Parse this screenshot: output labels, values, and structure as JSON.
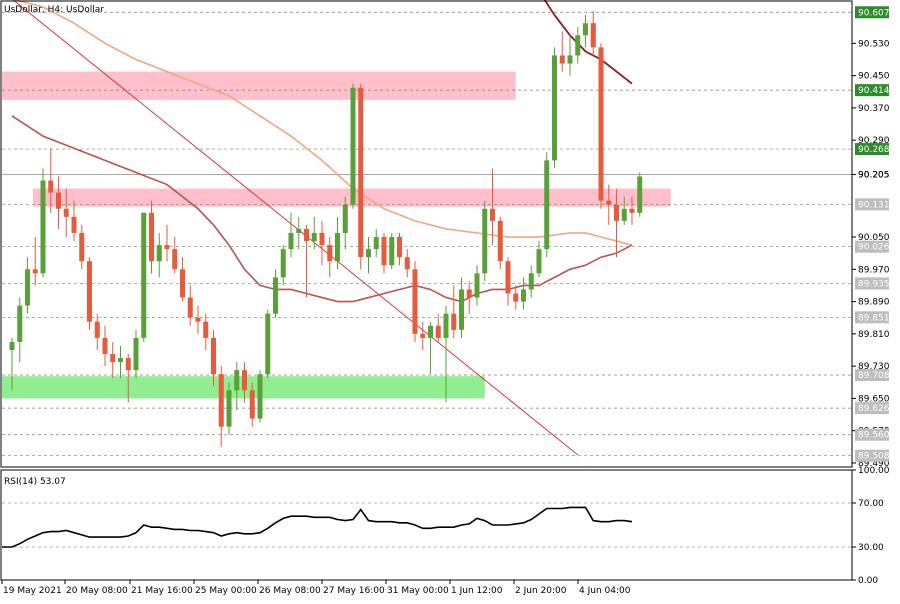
{
  "chart_data": {
    "type": "candlestick",
    "title": "UsDollar, H4:  UsDollar",
    "symbol": "UsDollar",
    "timeframe": "H4",
    "y_ticks": [
      "90.530",
      "90.450",
      "90.370",
      "90.290",
      "90.205",
      "90.050",
      "89.970",
      "89.890",
      "89.810",
      "89.730",
      "89.650",
      "89.570",
      "89.490"
    ],
    "price_labels": [
      {
        "text": "90.607",
        "value": 90.607,
        "color": "#2b8c2b"
      },
      {
        "text": "90.414",
        "value": 90.414,
        "color": "#2b8c2b"
      },
      {
        "text": "90.268",
        "value": 90.268,
        "color": "#2b8c2b"
      },
      {
        "text": "90.205",
        "value": 90.205,
        "color": "#ffffff"
      },
      {
        "text": "90.131",
        "value": 90.131,
        "color": "#bdbdbd"
      },
      {
        "text": "90.026",
        "value": 90.026,
        "color": "#bdbdbd"
      },
      {
        "text": "89.935",
        "value": 89.935,
        "color": "#bdbdbd"
      },
      {
        "text": "89.851",
        "value": 89.851,
        "color": "#bdbdbd"
      },
      {
        "text": "89.708",
        "value": 89.708,
        "color": "#bdbdbd"
      },
      {
        "text": "89.626",
        "value": 89.626,
        "color": "#bdbdbd"
      },
      {
        "text": "89.560",
        "value": 89.56,
        "color": "#bdbdbd"
      },
      {
        "text": "89.508",
        "value": 89.508,
        "color": "#bdbdbd"
      }
    ],
    "x_labels": [
      "19 May 2021",
      "20 May 08:00",
      "21 May 16:00",
      "25 May 00:00",
      "26 May 08:00",
      "27 May 16:00",
      "31 May 00:00",
      "1 Jun 12:00",
      "2 Jun 20:00",
      "4 Jun 04:00"
    ],
    "zones": [
      {
        "type": "resistance",
        "from": 90.39,
        "to": 90.46,
        "bar_start": 0,
        "bar_end": 65,
        "color": "#ffc0cb"
      },
      {
        "type": "resistance",
        "from": 90.125,
        "to": 90.17,
        "bar_start": 4,
        "bar_end": 85,
        "color": "#ffc0cb"
      },
      {
        "type": "support",
        "from": 89.65,
        "to": 89.705,
        "bar_start": 0,
        "bar_end": 61,
        "color": "#90ee90"
      }
    ],
    "candles": [
      {
        "o": 89.77,
        "h": 89.8,
        "l": 89.67,
        "c": 89.79
      },
      {
        "o": 89.79,
        "h": 89.9,
        "l": 89.74,
        "c": 89.88
      },
      {
        "o": 89.88,
        "h": 90.0,
        "l": 89.86,
        "c": 89.97
      },
      {
        "o": 89.97,
        "h": 90.05,
        "l": 89.93,
        "c": 89.96
      },
      {
        "o": 89.96,
        "h": 90.22,
        "l": 89.95,
        "c": 90.19
      },
      {
        "o": 90.19,
        "h": 90.27,
        "l": 90.11,
        "c": 90.16
      },
      {
        "o": 90.16,
        "h": 90.2,
        "l": 90.07,
        "c": 90.12
      },
      {
        "o": 90.12,
        "h": 90.17,
        "l": 90.05,
        "c": 90.1
      },
      {
        "o": 90.1,
        "h": 90.14,
        "l": 90.04,
        "c": 90.06
      },
      {
        "o": 90.06,
        "h": 90.08,
        "l": 89.97,
        "c": 89.99
      },
      {
        "o": 89.99,
        "h": 90.0,
        "l": 89.82,
        "c": 89.84
      },
      {
        "o": 89.84,
        "h": 89.86,
        "l": 89.77,
        "c": 89.8
      },
      {
        "o": 89.8,
        "h": 89.83,
        "l": 89.73,
        "c": 89.76
      },
      {
        "o": 89.76,
        "h": 89.79,
        "l": 89.7,
        "c": 89.74
      },
      {
        "o": 89.74,
        "h": 89.78,
        "l": 89.7,
        "c": 89.75
      },
      {
        "o": 89.75,
        "h": 89.76,
        "l": 89.64,
        "c": 89.72
      },
      {
        "o": 89.72,
        "h": 89.82,
        "l": 89.7,
        "c": 89.8
      },
      {
        "o": 89.8,
        "h": 90.11,
        "l": 89.79,
        "c": 90.11
      },
      {
        "o": 90.11,
        "h": 90.14,
        "l": 89.96,
        "c": 89.99
      },
      {
        "o": 89.99,
        "h": 90.06,
        "l": 89.95,
        "c": 90.03
      },
      {
        "o": 90.03,
        "h": 90.08,
        "l": 89.99,
        "c": 90.02
      },
      {
        "o": 90.02,
        "h": 90.05,
        "l": 89.96,
        "c": 89.97
      },
      {
        "o": 89.97,
        "h": 90.0,
        "l": 89.89,
        "c": 89.9
      },
      {
        "o": 89.9,
        "h": 89.93,
        "l": 89.83,
        "c": 89.85
      },
      {
        "o": 89.85,
        "h": 89.88,
        "l": 89.81,
        "c": 89.84
      },
      {
        "o": 89.84,
        "h": 89.86,
        "l": 89.77,
        "c": 89.8
      },
      {
        "o": 89.8,
        "h": 89.82,
        "l": 89.68,
        "c": 89.71
      },
      {
        "o": 89.71,
        "h": 89.73,
        "l": 89.53,
        "c": 89.58
      },
      {
        "o": 89.58,
        "h": 89.69,
        "l": 89.56,
        "c": 89.67
      },
      {
        "o": 89.67,
        "h": 89.74,
        "l": 89.62,
        "c": 89.72
      },
      {
        "o": 89.72,
        "h": 89.74,
        "l": 89.64,
        "c": 89.67
      },
      {
        "o": 89.67,
        "h": 89.69,
        "l": 89.58,
        "c": 89.6
      },
      {
        "o": 89.6,
        "h": 89.72,
        "l": 89.59,
        "c": 89.71
      },
      {
        "o": 89.71,
        "h": 89.87,
        "l": 89.7,
        "c": 89.86
      },
      {
        "o": 89.86,
        "h": 89.97,
        "l": 89.85,
        "c": 89.95
      },
      {
        "o": 89.95,
        "h": 90.03,
        "l": 89.93,
        "c": 90.02
      },
      {
        "o": 90.02,
        "h": 90.11,
        "l": 90.0,
        "c": 90.06
      },
      {
        "o": 90.06,
        "h": 90.1,
        "l": 90.02,
        "c": 90.07
      },
      {
        "o": 90.07,
        "h": 90.08,
        "l": 89.9,
        "c": 90.04
      },
      {
        "o": 90.04,
        "h": 90.1,
        "l": 90.02,
        "c": 90.06
      },
      {
        "o": 90.06,
        "h": 90.09,
        "l": 89.98,
        "c": 90.03
      },
      {
        "o": 90.03,
        "h": 90.05,
        "l": 89.95,
        "c": 89.99
      },
      {
        "o": 89.99,
        "h": 90.1,
        "l": 89.97,
        "c": 90.06
      },
      {
        "o": 90.06,
        "h": 90.15,
        "l": 90.02,
        "c": 90.13
      },
      {
        "o": 90.13,
        "h": 90.43,
        "l": 90.12,
        "c": 90.42
      },
      {
        "o": 90.42,
        "h": 90.43,
        "l": 89.97,
        "c": 90.0
      },
      {
        "o": 90.0,
        "h": 90.05,
        "l": 89.96,
        "c": 90.02
      },
      {
        "o": 90.02,
        "h": 90.07,
        "l": 90.0,
        "c": 90.05
      },
      {
        "o": 90.05,
        "h": 90.06,
        "l": 89.96,
        "c": 89.98
      },
      {
        "o": 89.98,
        "h": 90.06,
        "l": 89.97,
        "c": 90.05
      },
      {
        "o": 90.05,
        "h": 90.06,
        "l": 89.98,
        "c": 90.0
      },
      {
        "o": 90.0,
        "h": 90.02,
        "l": 89.95,
        "c": 89.97
      },
      {
        "o": 89.97,
        "h": 89.99,
        "l": 89.79,
        "c": 89.81
      },
      {
        "o": 89.81,
        "h": 89.84,
        "l": 89.77,
        "c": 89.8
      },
      {
        "o": 89.8,
        "h": 89.84,
        "l": 89.71,
        "c": 89.83
      },
      {
        "o": 89.83,
        "h": 89.86,
        "l": 89.79,
        "c": 89.8
      },
      {
        "o": 89.8,
        "h": 89.88,
        "l": 89.64,
        "c": 89.86
      },
      {
        "o": 89.86,
        "h": 89.93,
        "l": 89.8,
        "c": 89.82
      },
      {
        "o": 89.82,
        "h": 89.95,
        "l": 89.8,
        "c": 89.92
      },
      {
        "o": 89.92,
        "h": 89.94,
        "l": 89.86,
        "c": 89.9
      },
      {
        "o": 89.9,
        "h": 89.98,
        "l": 89.88,
        "c": 89.96
      },
      {
        "o": 89.96,
        "h": 90.14,
        "l": 89.94,
        "c": 90.12
      },
      {
        "o": 90.12,
        "h": 90.22,
        "l": 90.03,
        "c": 90.09
      },
      {
        "o": 90.09,
        "h": 90.1,
        "l": 89.97,
        "c": 89.99
      },
      {
        "o": 89.99,
        "h": 90.0,
        "l": 89.88,
        "c": 89.91
      },
      {
        "o": 89.91,
        "h": 89.93,
        "l": 89.87,
        "c": 89.89
      },
      {
        "o": 89.89,
        "h": 89.95,
        "l": 89.87,
        "c": 89.92
      },
      {
        "o": 89.92,
        "h": 89.98,
        "l": 89.9,
        "c": 89.96
      },
      {
        "o": 89.96,
        "h": 90.04,
        "l": 89.95,
        "c": 90.02
      },
      {
        "o": 90.02,
        "h": 90.26,
        "l": 90.0,
        "c": 90.24
      },
      {
        "o": 90.24,
        "h": 90.52,
        "l": 90.22,
        "c": 90.5
      },
      {
        "o": 90.5,
        "h": 90.56,
        "l": 90.46,
        "c": 90.48
      },
      {
        "o": 90.48,
        "h": 90.55,
        "l": 90.45,
        "c": 90.5
      },
      {
        "o": 90.5,
        "h": 90.57,
        "l": 90.48,
        "c": 90.55
      },
      {
        "o": 90.55,
        "h": 90.6,
        "l": 90.52,
        "c": 90.58
      },
      {
        "o": 90.58,
        "h": 90.61,
        "l": 90.5,
        "c": 90.52
      },
      {
        "o": 90.52,
        "h": 90.53,
        "l": 90.12,
        "c": 90.14
      },
      {
        "o": 90.14,
        "h": 90.18,
        "l": 90.08,
        "c": 90.13
      },
      {
        "o": 90.13,
        "h": 90.17,
        "l": 90.0,
        "c": 90.09
      },
      {
        "o": 90.09,
        "h": 90.15,
        "l": 90.08,
        "c": 90.12
      },
      {
        "o": 90.12,
        "h": 90.15,
        "l": 90.08,
        "c": 90.11
      },
      {
        "o": 90.11,
        "h": 90.21,
        "l": 90.1,
        "c": 90.2
      }
    ],
    "indicators": {
      "ma_dark": {
        "color": "#8b1a1a",
        "points": [
          [
            68,
            90.66
          ],
          [
            70,
            90.6
          ],
          [
            72,
            90.55
          ],
          [
            74,
            90.51
          ],
          [
            76,
            90.49
          ],
          [
            78,
            90.46
          ],
          [
            80,
            90.43
          ]
        ]
      },
      "ma_orange": {
        "color": "#f4a582",
        "points": [
          [
            0,
            90.64
          ],
          [
            4,
            90.62
          ],
          [
            8,
            90.58
          ],
          [
            12,
            90.53
          ],
          [
            16,
            90.49
          ],
          [
            20,
            90.46
          ],
          [
            24,
            90.43
          ],
          [
            28,
            90.4
          ],
          [
            32,
            90.35
          ],
          [
            36,
            90.3
          ],
          [
            40,
            90.24
          ],
          [
            44,
            90.17
          ],
          [
            48,
            90.12
          ],
          [
            52,
            90.09
          ],
          [
            56,
            90.07
          ],
          [
            60,
            90.06
          ],
          [
            64,
            90.05
          ],
          [
            68,
            90.05
          ],
          [
            72,
            90.06
          ],
          [
            74,
            90.06
          ],
          [
            76,
            90.05
          ],
          [
            78,
            90.04
          ],
          [
            80,
            90.03
          ]
        ]
      },
      "ma_red": {
        "color": "#b85450",
        "points": [
          [
            0,
            90.35
          ],
          [
            4,
            90.3
          ],
          [
            8,
            90.27
          ],
          [
            12,
            90.24
          ],
          [
            16,
            90.21
          ],
          [
            20,
            90.18
          ],
          [
            22,
            90.15
          ],
          [
            24,
            90.12
          ],
          [
            26,
            90.08
          ],
          [
            28,
            90.03
          ],
          [
            30,
            89.97
          ],
          [
            32,
            89.93
          ],
          [
            34,
            89.92
          ],
          [
            36,
            89.92
          ],
          [
            38,
            89.91
          ],
          [
            40,
            89.9
          ],
          [
            42,
            89.89
          ],
          [
            44,
            89.89
          ],
          [
            46,
            89.9
          ],
          [
            48,
            89.91
          ],
          [
            50,
            89.92
          ],
          [
            52,
            89.93
          ],
          [
            54,
            89.92
          ],
          [
            56,
            89.9
          ],
          [
            58,
            89.89
          ],
          [
            60,
            89.91
          ],
          [
            62,
            89.92
          ],
          [
            64,
            89.92
          ],
          [
            66,
            89.93
          ],
          [
            68,
            89.93
          ],
          [
            70,
            89.95
          ],
          [
            72,
            89.97
          ],
          [
            74,
            89.98
          ],
          [
            76,
            90.0
          ],
          [
            78,
            90.01
          ],
          [
            80,
            90.03
          ]
        ]
      },
      "trendline": {
        "color": "#d83a3a",
        "points": [
          [
            0,
            90.64
          ],
          [
            73,
            89.51
          ]
        ]
      }
    },
    "rsi": {
      "label": "RSI(14) 53.07",
      "ticks": [
        "100.00",
        "70.00",
        "30.00",
        "0.00"
      ],
      "levels": [
        70,
        30
      ],
      "values": [
        30,
        33,
        37,
        40,
        43,
        44,
        44,
        45,
        43,
        41,
        39,
        39,
        39,
        39,
        39,
        40,
        43,
        50,
        48,
        48,
        47,
        46,
        46,
        45,
        45,
        44,
        43,
        40,
        42,
        43,
        42,
        42,
        43,
        47,
        52,
        56,
        58,
        58,
        58,
        57,
        57,
        57,
        55,
        54,
        55,
        64,
        54,
        53,
        53,
        53,
        52,
        52,
        50,
        47,
        47,
        48,
        48,
        48,
        50,
        51,
        56,
        54,
        50,
        50,
        50,
        51,
        52,
        55,
        60,
        65,
        65,
        65,
        66,
        66,
        66,
        54,
        53,
        53,
        54,
        54,
        53
      ]
    }
  }
}
